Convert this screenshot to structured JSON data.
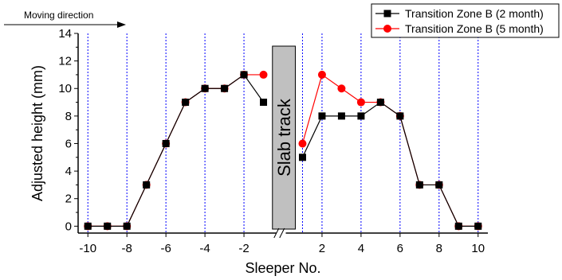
{
  "chart_data": {
    "type": "line",
    "xlabel": "Sleeper No.",
    "ylabel": "Adjusted  height (mm)",
    "xlim": [
      -10.5,
      10.5
    ],
    "ylim": [
      -0.5,
      14
    ],
    "x_ticks": [
      -10,
      -8,
      -6,
      -4,
      -2,
      2,
      4,
      6,
      8,
      10
    ],
    "y_ticks": [
      0,
      2,
      4,
      6,
      8,
      10,
      12,
      14
    ],
    "gridlines_x": [
      -10,
      -8,
      -6,
      -4,
      -2,
      1,
      2,
      4,
      6,
      8,
      10
    ],
    "gap": {
      "label": "Slab track",
      "x_range": [
        -0.5,
        1
      ]
    },
    "annotation": "Moving direction",
    "legend_position": "top-right",
    "series": [
      {
        "name": "Transition Zone B (2 month)",
        "color": "#000000",
        "marker": "square",
        "segments": [
          [
            [
              -10,
              0
            ],
            [
              -9,
              0
            ],
            [
              -8,
              0
            ],
            [
              -7,
              3
            ],
            [
              -6,
              6
            ],
            [
              -5,
              9
            ],
            [
              -4,
              10
            ],
            [
              -3,
              10
            ],
            [
              -2,
              11
            ],
            [
              -1,
              9
            ]
          ],
          [
            [
              1,
              5
            ],
            [
              2,
              8
            ],
            [
              3,
              8
            ],
            [
              4,
              8
            ],
            [
              5,
              9
            ],
            [
              6,
              8
            ],
            [
              7,
              3
            ],
            [
              8,
              3
            ],
            [
              9,
              0
            ],
            [
              10,
              0
            ]
          ]
        ]
      },
      {
        "name": "Transition Zone B (5 month)",
        "color": "#ff0000",
        "marker": "circle",
        "segments": [
          [
            [
              -10,
              0
            ],
            [
              -9,
              0
            ],
            [
              -8,
              0
            ],
            [
              -7,
              3
            ],
            [
              -6,
              6
            ],
            [
              -5,
              9
            ],
            [
              -4,
              10
            ],
            [
              -3,
              10
            ],
            [
              -2,
              11
            ],
            [
              -1,
              11
            ]
          ],
          [
            [
              1,
              6
            ],
            [
              2,
              11
            ],
            [
              3,
              10
            ],
            [
              4,
              9
            ],
            [
              5,
              9
            ],
            [
              6,
              8
            ],
            [
              7,
              3
            ],
            [
              8,
              3
            ],
            [
              9,
              0
            ],
            [
              10,
              0
            ]
          ]
        ]
      }
    ]
  }
}
